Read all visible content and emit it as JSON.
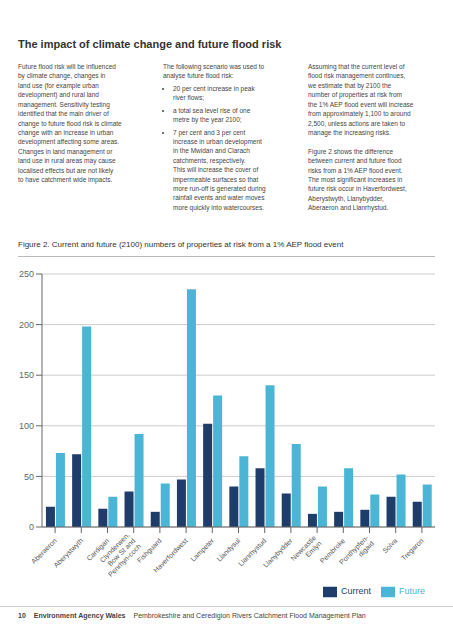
{
  "chart_data": {
    "type": "bar",
    "title": "Figure 2. Current and future (2100) numbers of properties at risk from a 1% AEP flood event",
    "categories": [
      "Aberaeron",
      "Aberystwyth",
      "Cardigan",
      "Clynderwen,\nBow St and\nPenrhyn-coch",
      "Fishguard",
      "Haverfordwest",
      "Lampeter",
      "Llandysul",
      "Llanrhystud",
      "Llanybydder",
      "Newcastle\nEmlyn",
      "Pembroke",
      "Ponthypfen-\ndigaid",
      "Solva",
      "Tregaron"
    ],
    "series": [
      {
        "name": "Current",
        "color": "#1f3d6b",
        "values": [
          20,
          72,
          18,
          35,
          15,
          47,
          102,
          40,
          58,
          33,
          13,
          15,
          17,
          30,
          25
        ]
      },
      {
        "name": "Future",
        "color": "#4ab5d4",
        "values": [
          73,
          198,
          30,
          92,
          43,
          235,
          130,
          70,
          140,
          82,
          40,
          58,
          32,
          52,
          42
        ]
      }
    ],
    "ylim": [
      0,
      250
    ],
    "yticks": [
      0,
      50,
      100,
      150,
      200,
      250
    ],
    "grid": true,
    "legend": "lower right",
    "annotations": [
      "The impact of climate change and future flood risk",
      "Future flood risk will be influenced\nby climate change, changes in\nland use (for example urban\ndevelopment) and rural land\nmanagement. Sensitivity testing\nidentified that the main driver of\nchange to future flood risk is climate\nchange with an increase in urban\ndevelopment affecting some areas.\nChanges in land management or\nland use in rural areas may cause\nlocalised effects but are not likely\nto have catchment wide impacts.",
      "The following scenario was used to\nanalyse future flood risk:",
      "20 per cent increase in peak\nriver flows;",
      "a total sea level rise of one\nmetre by the year 2100;",
      "7 per cent and 3 per cent\nincrease in urban development\nin the Mwidan and Clarach\ncatchments, respectively.\nThis will increase the cover of\nimpermeable surfaces so that\nmore run-off is generated during\nrainfall events and water moves\nmore quickly into watercourses.",
      "Assuming that the current level of\nflood risk management continues,\nwe estimate that by 2100 the\nnumber of properties at risk from\nthe 1% AEP flood event will increase\nfrom approximately 1,100 to around\n2,500, unless actions are taken to\nmanage the increasing risks.\n\nFigure 2 shows the difference\nbetween current and future flood\nrisks from a 1% AEP flood event.\nThe most significant increases in\nfuture risk occur in Haverfordwest,\nAberystwyth, Llanybydder,\nAberaeron and Llanrhystud.",
      "10",
      "Environment Agency Wales",
      "Pembrokeshire and Ceredigion Rivers Catchment Flood Management Plan"
    ]
  }
}
